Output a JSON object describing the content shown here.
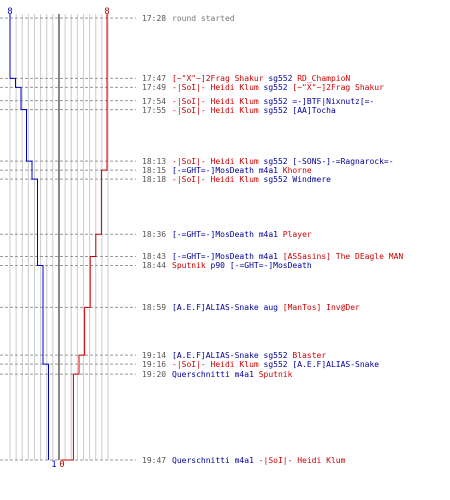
{
  "chart_data": {
    "type": "line",
    "title": "",
    "teams": [
      {
        "name": "blue",
        "color": "#0000cc",
        "start_count": 8,
        "end_count": 1
      },
      {
        "name": "red",
        "color": "#cc0000",
        "start_count": 8,
        "end_count": 0
      }
    ],
    "top_labels": {
      "blue": "8",
      "red": "8"
    },
    "bottom_labels": {
      "blue": "1",
      "red": "0"
    },
    "events": [
      {
        "time": "17:28",
        "parts": [
          {
            "text": "round started",
            "color": "grey"
          }
        ],
        "blue": 8,
        "red": 8
      },
      {
        "time": "17:47",
        "parts": [
          {
            "text": "[~\"X\"~]2Frag Shakur",
            "color": "red"
          },
          {
            "text": " sg552 ",
            "color": "blue"
          },
          {
            "text": "RD_ChampioN",
            "color": "red"
          }
        ],
        "blue": 7,
        "red": 8
      },
      {
        "time": "17:49",
        "parts": [
          {
            "text": "-|SoI|- Heidi Klum",
            "color": "red"
          },
          {
            "text": " sg552 ",
            "color": "blue"
          },
          {
            "text": "[~\"X\"~]2Frag Shakur",
            "color": "red"
          }
        ],
        "blue": 6,
        "red": 8
      },
      {
        "time": "17:54",
        "parts": [
          {
            "text": "-|SoI|- Heidi Klum",
            "color": "red"
          },
          {
            "text": " sg552 ",
            "color": "blue"
          },
          {
            "text": "=-]BTF|Nixnutz[=-",
            "color": "blue"
          }
        ],
        "blue": 6,
        "red": 8
      },
      {
        "time": "17:55",
        "parts": [
          {
            "text": "-|SoI|- Heidi Klum",
            "color": "red"
          },
          {
            "text": " sg552 ",
            "color": "blue"
          },
          {
            "text": "[AA]Tocha",
            "color": "blue"
          }
        ],
        "blue": 5,
        "red": 8
      },
      {
        "time": "18:13",
        "parts": [
          {
            "text": "-|SoI|- Heidi Klum",
            "color": "red"
          },
          {
            "text": " sg552 ",
            "color": "blue"
          },
          {
            "text": "[-SONS-]-=Ragnarock=-",
            "color": "blue"
          }
        ],
        "blue": 4,
        "red": 8
      },
      {
        "time": "18:15",
        "parts": [
          {
            "text": "[-=GHT=-]MosDeath",
            "color": "blue"
          },
          {
            "text": " m4a1 ",
            "color": "blue"
          },
          {
            "text": "Khorne",
            "color": "red"
          }
        ],
        "blue": 4,
        "red": 7
      },
      {
        "time": "18:18",
        "parts": [
          {
            "text": "-|SoI|- Heidi Klum",
            "color": "red"
          },
          {
            "text": " sg552 ",
            "color": "blue"
          },
          {
            "text": "Windmere",
            "color": "blue"
          }
        ],
        "blue": 3,
        "red": 7
      },
      {
        "time": "18:36",
        "parts": [
          {
            "text": "[-=GHT=-]MosDeath",
            "color": "blue"
          },
          {
            "text": " m4a1 ",
            "color": "blue"
          },
          {
            "text": "Player",
            "color": "red"
          }
        ],
        "blue": 3,
        "red": 6
      },
      {
        "time": "18:43",
        "parts": [
          {
            "text": "[-=GHT=-]MosDeath",
            "color": "blue"
          },
          {
            "text": " m4a1 ",
            "color": "blue"
          },
          {
            "text": "[ASSasins] The DEagle MAN",
            "color": "red"
          }
        ],
        "blue": 3,
        "red": 5
      },
      {
        "time": "18:44",
        "parts": [
          {
            "text": "Sputnik",
            "color": "red"
          },
          {
            "text": " p90 ",
            "color": "blue"
          },
          {
            "text": "[-=GHT=-]MosDeath",
            "color": "blue"
          }
        ],
        "blue": 2,
        "red": 5
      },
      {
        "time": "18:59",
        "parts": [
          {
            "text": "[A.E.F]ALIAS-Snake",
            "color": "blue"
          },
          {
            "text": " aug ",
            "color": "blue"
          },
          {
            "text": "[ManTos] Inv@Der",
            "color": "red"
          }
        ],
        "blue": 2,
        "red": 4
      },
      {
        "time": "19:14",
        "parts": [
          {
            "text": "[A.E.F]ALIAS-Snake",
            "color": "blue"
          },
          {
            "text": " sg552 ",
            "color": "blue"
          },
          {
            "text": "Blaster",
            "color": "red"
          }
        ],
        "blue": 2,
        "red": 3
      },
      {
        "time": "19:16",
        "parts": [
          {
            "text": "-|SoI|- Heidi Klum",
            "color": "red"
          },
          {
            "text": " sg552 ",
            "color": "blue"
          },
          {
            "text": "[A.E.F]ALIAS-Snake",
            "color": "blue"
          }
        ],
        "blue": 1,
        "red": 3
      },
      {
        "time": "19:20",
        "parts": [
          {
            "text": "Querschnitti",
            "color": "blue"
          },
          {
            "text": " m4a1 ",
            "color": "blue"
          },
          {
            "text": "Sputnik",
            "color": "red"
          }
        ],
        "blue": 1,
        "red": 2
      },
      {
        "time": "19:47",
        "parts": [
          {
            "text": "Querschnitti",
            "color": "blue"
          },
          {
            "text": " m4a1 ",
            "color": "blue"
          },
          {
            "text": "-|SoI|- Heidi Klum",
            "color": "red"
          }
        ],
        "blue": 1,
        "red": 0
      }
    ]
  }
}
